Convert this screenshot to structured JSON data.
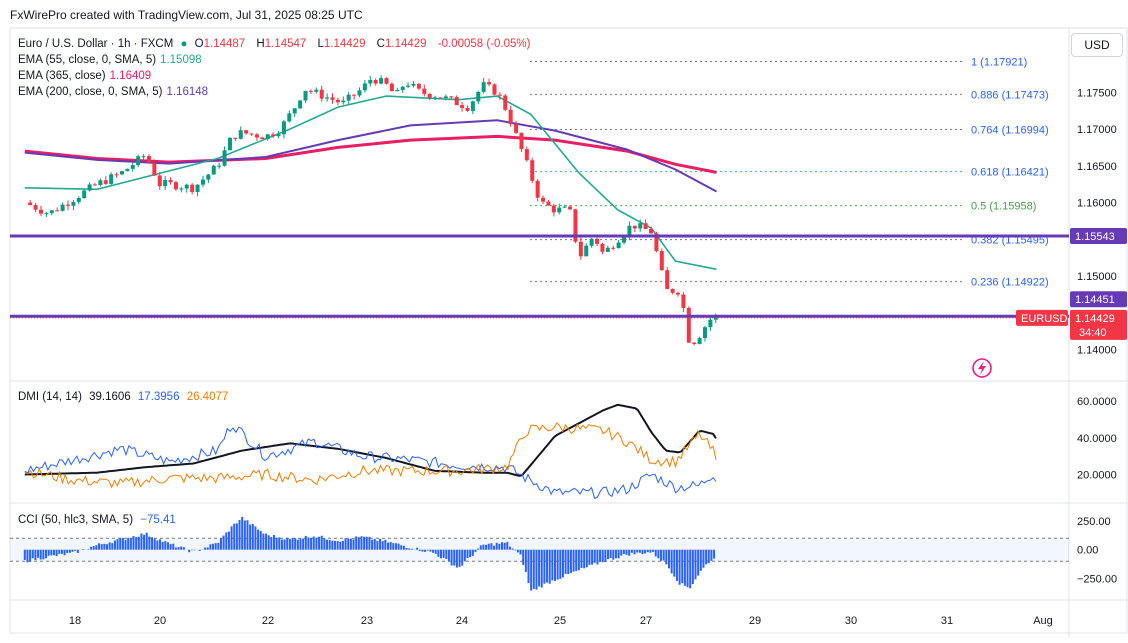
{
  "header": {
    "credit": "FxWirePro created with TradingView.com, Jul 31, 2025 08:25 UTC"
  },
  "legend": {
    "symbol": "Euro / U.S. Dollar · 1h · FXCM",
    "o_label": "O",
    "o_value": "1.14487",
    "h_label": "H",
    "h_value": "1.14547",
    "l_label": "L",
    "l_value": "1.14429",
    "c_label": "C",
    "c_value": "1.14429",
    "change": "-0.00058 (-0.05%)",
    "ema55": "EMA (55, close, 0, SMA, 5)",
    "ema55_value": "1.15098",
    "ema365": "EMA (365, close)",
    "ema365_value": "1.16409",
    "ema200": "EMA (200, close, 0, SMA, 5)",
    "ema200_value": "1.16148",
    "dmi": "DMI (14, 14)",
    "dmi_adx": "39.1606",
    "dmi_plus": "17.3956",
    "dmi_minus": "26.4077",
    "cci": "CCI (50, hlc3, SMA, 5)",
    "cci_value": "−75.41"
  },
  "currency_button": "USD",
  "price_axis": {
    "ticks": [
      "1.17500",
      "1.17000",
      "1.16500",
      "1.16000",
      "1.15000",
      "1.14000"
    ],
    "badge_hline": "1.15543",
    "badge_hline2": "1.14451",
    "badge_symbol": "EURUSD",
    "badge_price": "1.14429",
    "badge_countdown": "34:40"
  },
  "fib_labels": [
    "1 (1.17921)",
    "0.886 (1.17473)",
    "0.764 (1.16994)",
    "0.618 (1.16421)",
    "0.5 (1.15958)",
    "0.382 (1.15495)",
    "0.236 (1.14922)"
  ],
  "dmi_axis": [
    "60.0000",
    "40.0000",
    "20.0000"
  ],
  "cci_axis": [
    "250.00",
    "0.00",
    "−250.00"
  ],
  "x_axis": [
    "18",
    "20",
    "22",
    "23",
    "24",
    "25",
    "27",
    "29",
    "30",
    "31",
    "Aug"
  ],
  "colors": {
    "up": "#089981",
    "down": "#f23645",
    "ema55": "#22ab94",
    "ema365": "#e91e63",
    "ema200": "#673ab7",
    "hline": "#673ab7",
    "adx": "#131722",
    "di_plus": "#2962ff",
    "di_minus": "#f57c00",
    "cci": "#2962ff",
    "fib": "#787b86"
  },
  "chart_data": [
    {
      "type": "candlestick",
      "title": "Euro / U.S. Dollar · 1h · FXCM",
      "x_ticks": [
        "18",
        "20",
        "22",
        "23",
        "24",
        "25",
        "27",
        "29",
        "30",
        "31",
        "Aug"
      ],
      "ylim": [
        1.1365,
        1.1835
      ],
      "close_path_days": [
        [
          17.0,
          1.16
        ],
        [
          17.5,
          1.1585
        ],
        [
          18.0,
          1.1605
        ],
        [
          18.5,
          1.1625
        ],
        [
          19.0,
          1.164
        ],
        [
          19.5,
          1.1665
        ],
        [
          19.8,
          1.1625
        ],
        [
          20.0,
          1.1625
        ],
        [
          20.5,
          1.162
        ],
        [
          21.0,
          1.165
        ],
        [
          21.3,
          1.169
        ],
        [
          21.5,
          1.1695
        ],
        [
          22.0,
          1.169
        ],
        [
          22.3,
          1.17
        ],
        [
          22.6,
          1.173
        ],
        [
          22.8,
          1.1755
        ],
        [
          23.2,
          1.1745
        ],
        [
          23.6,
          1.1735
        ],
        [
          24.0,
          1.1755
        ],
        [
          24.2,
          1.177
        ],
        [
          24.5,
          1.176
        ],
        [
          24.7,
          1.1745
        ],
        [
          24.9,
          1.1765
        ],
        [
          25.2,
          1.175
        ],
        [
          25.6,
          1.1745
        ],
        [
          26.2,
          1.173
        ],
        [
          26.5,
          1.176
        ],
        [
          26.8,
          1.175
        ],
        [
          27.0,
          1.1725
        ],
        [
          27.2,
          1.169
        ],
        [
          27.4,
          1.1655
        ],
        [
          27.7,
          1.16
        ],
        [
          28.0,
          1.159
        ],
        [
          28.3,
          1.159
        ],
        [
          28.5,
          1.1525
        ],
        [
          28.8,
          1.1555
        ],
        [
          29.0,
          1.153
        ],
        [
          29.3,
          1.155
        ],
        [
          29.6,
          1.157
        ],
        [
          30.0,
          1.156
        ],
        [
          30.3,
          1.148
        ],
        [
          30.6,
          1.148
        ],
        [
          30.8,
          1.1405
        ],
        [
          31.0,
          1.142
        ],
        [
          31.2,
          1.144
        ],
        [
          31.35,
          1.1445
        ]
      ],
      "ema55": [
        [
          17.0,
          1.162
        ],
        [
          18.5,
          1.1618
        ],
        [
          21.0,
          1.166
        ],
        [
          22.5,
          1.17
        ],
        [
          23.5,
          1.173
        ],
        [
          24.5,
          1.1745
        ],
        [
          26.0,
          1.174
        ],
        [
          26.8,
          1.1745
        ],
        [
          27.5,
          1.172
        ],
        [
          28.5,
          1.164
        ],
        [
          29.3,
          1.159
        ],
        [
          30.0,
          1.1565
        ],
        [
          30.5,
          1.152
        ],
        [
          31.35,
          1.1509
        ]
      ],
      "ema365": [
        [
          17.0,
          1.167
        ],
        [
          18.5,
          1.166
        ],
        [
          20.0,
          1.1655
        ],
        [
          22.0,
          1.166
        ],
        [
          23.5,
          1.1675
        ],
        [
          25.0,
          1.1685
        ],
        [
          26.8,
          1.169
        ],
        [
          28.0,
          1.1685
        ],
        [
          29.5,
          1.167
        ],
        [
          30.5,
          1.1652
        ],
        [
          31.35,
          1.1641
        ]
      ],
      "ema200": [
        [
          17.0,
          1.1668
        ],
        [
          18.5,
          1.1658
        ],
        [
          20.0,
          1.1653
        ],
        [
          22.0,
          1.1662
        ],
        [
          23.5,
          1.1685
        ],
        [
          25.0,
          1.1705
        ],
        [
          26.8,
          1.1712
        ],
        [
          28.0,
          1.1698
        ],
        [
          29.5,
          1.1672
        ],
        [
          30.5,
          1.1645
        ],
        [
          31.35,
          1.1615
        ]
      ],
      "fib_levels": [
        1.17921,
        1.17473,
        1.16994,
        1.16421,
        1.15958,
        1.15495,
        1.14922
      ],
      "horizontal_levels": [
        1.15543,
        1.14451
      ],
      "last_price": 1.14429
    },
    {
      "type": "line",
      "title": "DMI (14, 14)",
      "ylim": [
        5,
        65
      ],
      "series": [
        {
          "name": "ADX",
          "values": [
            [
              17.0,
              20
            ],
            [
              18.5,
              21
            ],
            [
              19.5,
              24
            ],
            [
              20.5,
              26
            ],
            [
              21.5,
              33
            ],
            [
              22.5,
              37
            ],
            [
              23.5,
              34
            ],
            [
              24.5,
              29
            ],
            [
              25.5,
              22
            ],
            [
              26.5,
              21
            ],
            [
              27.0,
              21
            ],
            [
              27.3,
              19
            ],
            [
              28.0,
              41
            ],
            [
              29.0,
              55
            ],
            [
              29.3,
              58
            ],
            [
              29.7,
              56
            ],
            [
              30.0,
              43
            ],
            [
              30.3,
              33
            ],
            [
              30.6,
              32
            ],
            [
              31.0,
              44
            ],
            [
              31.3,
              42
            ],
            [
              31.35,
              39.16
            ]
          ]
        },
        {
          "name": "+DI",
          "values": [
            [
              17.0,
              22
            ],
            [
              18.0,
              28
            ],
            [
              19.0,
              34
            ],
            [
              20.0,
              27
            ],
            [
              21.0,
              33
            ],
            [
              21.3,
              48
            ],
            [
              22.0,
              30
            ],
            [
              23.0,
              38
            ],
            [
              24.0,
              30
            ],
            [
              25.0,
              28
            ],
            [
              26.0,
              25
            ],
            [
              27.0,
              24
            ],
            [
              27.4,
              18
            ],
            [
              28.0,
              10
            ],
            [
              29.0,
              10
            ],
            [
              29.5,
              12
            ],
            [
              30.0,
              20
            ],
            [
              30.5,
              13
            ],
            [
              31.0,
              14
            ],
            [
              31.3,
              21
            ],
            [
              31.35,
              17.4
            ]
          ]
        },
        {
          "name": "−DI",
          "values": [
            [
              17.0,
              22
            ],
            [
              18.0,
              17
            ],
            [
              19.0,
              15
            ],
            [
              20.0,
              18
            ],
            [
              21.0,
              18
            ],
            [
              22.0,
              20
            ],
            [
              23.0,
              17
            ],
            [
              24.0,
              22
            ],
            [
              25.0,
              22
            ],
            [
              26.0,
              22
            ],
            [
              27.0,
              24
            ],
            [
              27.4,
              44
            ],
            [
              28.0,
              46
            ],
            [
              29.0,
              44
            ],
            [
              29.5,
              38
            ],
            [
              30.0,
              28
            ],
            [
              30.5,
              27
            ],
            [
              31.0,
              42
            ],
            [
              31.3,
              32
            ],
            [
              31.35,
              26.41
            ]
          ]
        }
      ]
    },
    {
      "type": "bar",
      "title": "CCI (50, hlc3, SMA, 5)",
      "ylim": [
        -420,
        380
      ],
      "values_days": [
        [
          17.0,
          -100
        ],
        [
          17.5,
          -60
        ],
        [
          18.0,
          -30
        ],
        [
          18.5,
          40
        ],
        [
          19.0,
          90
        ],
        [
          19.5,
          140
        ],
        [
          20.0,
          50
        ],
        [
          20.5,
          -20
        ],
        [
          21.0,
          60
        ],
        [
          21.3,
          200
        ],
        [
          21.5,
          280
        ],
        [
          22.0,
          130
        ],
        [
          22.5,
          90
        ],
        [
          23.0,
          120
        ],
        [
          23.5,
          80
        ],
        [
          24.0,
          110
        ],
        [
          24.5,
          70
        ],
        [
          25.0,
          20
        ],
        [
          25.5,
          -30
        ],
        [
          26.0,
          -160
        ],
        [
          26.5,
          40
        ],
        [
          27.0,
          60
        ],
        [
          27.3,
          -60
        ],
        [
          27.5,
          -360
        ],
        [
          28.0,
          -260
        ],
        [
          28.5,
          -180
        ],
        [
          29.0,
          -100
        ],
        [
          29.5,
          -40
        ],
        [
          30.0,
          -20
        ],
        [
          30.3,
          -120
        ],
        [
          30.6,
          -300
        ],
        [
          30.8,
          -330
        ],
        [
          31.0,
          -200
        ],
        [
          31.2,
          -100
        ],
        [
          31.35,
          -75.41
        ]
      ]
    }
  ]
}
